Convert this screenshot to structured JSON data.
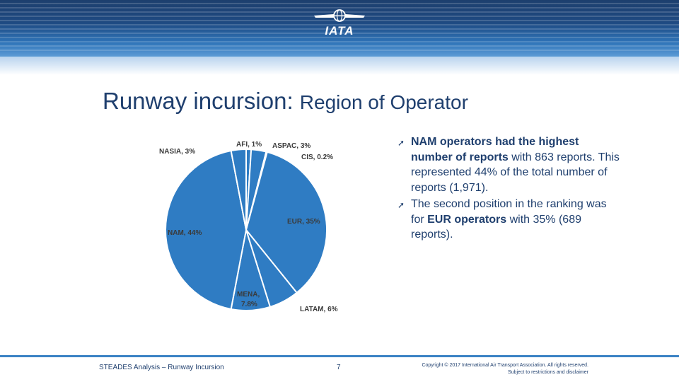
{
  "header": {
    "logo_text": "IATA"
  },
  "slide": {
    "title_main": "Runway incursion:",
    "title_sub": "Region of Operator"
  },
  "bullets": [
    {
      "b1_strong": "NAM operators had the highest number of reports",
      "b1_rest": " with 863 reports. This represented 44% of the total number of reports (1,971)."
    },
    {
      "b2_pre": "The second position in the ranking was for ",
      "b2_strong": "EUR operators",
      "b2_post": " with 35% (689 reports)."
    }
  ],
  "footer": {
    "left": "STEADES Analysis – Runway Incursion",
    "page": "7",
    "copyright_1": "Copyright © 2017 International Air Transport Association. All rights reserved.",
    "copyright_2": "Subject to restrictions and disclaimer"
  },
  "colors": {
    "slice": "#2f7cc3",
    "border": "#ffffff",
    "title": "#1f3f6e"
  },
  "chart_data": {
    "type": "pie",
    "title": "",
    "slices": [
      {
        "name": "AFI",
        "value": 1,
        "label": "AFI, 1%"
      },
      {
        "name": "ASPAC",
        "value": 3,
        "label": "ASPAC, 3%"
      },
      {
        "name": "CIS",
        "value": 0.2,
        "label": "CIS, 0.2%"
      },
      {
        "name": "EUR",
        "value": 35,
        "label": "EUR, 35%"
      },
      {
        "name": "LATAM",
        "value": 6,
        "label": "LATAM, 6%"
      },
      {
        "name": "MENA",
        "value": 7.8,
        "label_line1": "MENA,",
        "label_line2": "7.8%"
      },
      {
        "name": "NAM",
        "value": 44,
        "label": "NAM, 44%"
      },
      {
        "name": "NASIA",
        "value": 3,
        "label": "NASIA, 3%"
      }
    ]
  }
}
